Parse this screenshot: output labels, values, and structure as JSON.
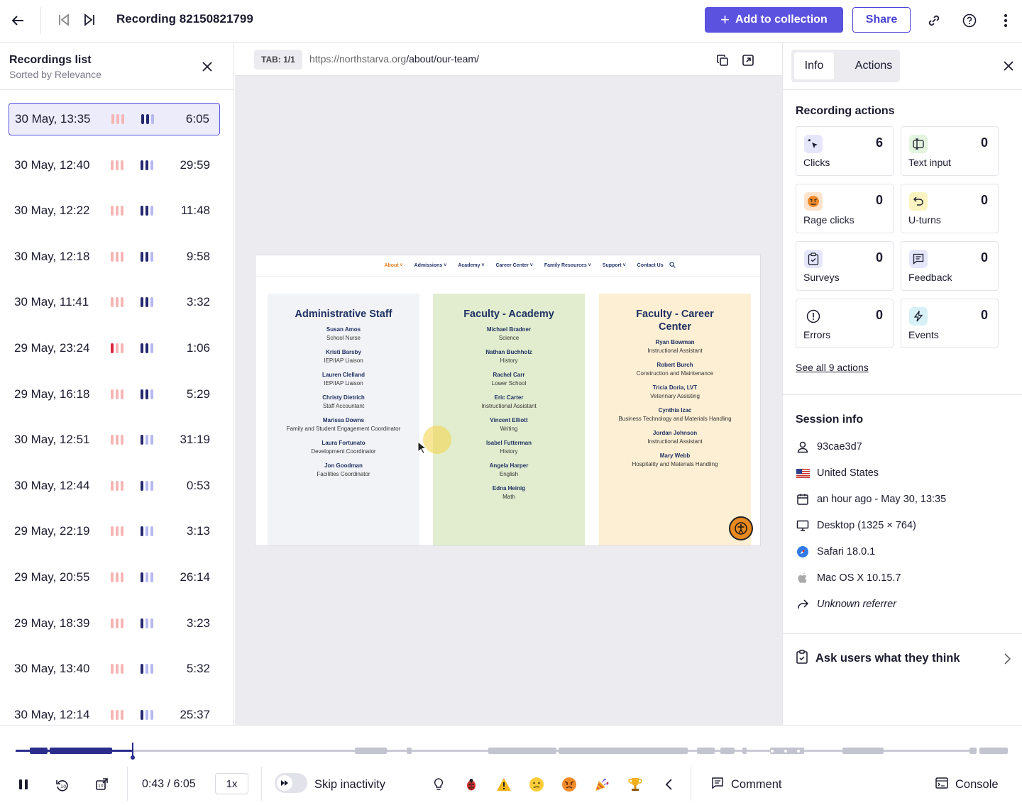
{
  "header": {
    "title": "Recording 82150821799",
    "add_to_collection": "Add to collection",
    "share": "Share"
  },
  "recordings": {
    "title": "Recordings list",
    "subtitle": "Sorted by Relevance",
    "items": [
      {
        "date": "30 May, 13:35",
        "duration": "6:05",
        "active": true
      },
      {
        "date": "30 May, 12:40",
        "duration": "29:59"
      },
      {
        "date": "30 May, 12:22",
        "duration": "11:48"
      },
      {
        "date": "30 May, 12:18",
        "duration": "9:58"
      },
      {
        "date": "30 May, 11:41",
        "duration": "3:32"
      },
      {
        "date": "29 May, 23:24",
        "duration": "1:06"
      },
      {
        "date": "29 May, 16:18",
        "duration": "5:29"
      },
      {
        "date": "30 May, 12:51",
        "duration": "31:19"
      },
      {
        "date": "30 May, 12:44",
        "duration": "0:53"
      },
      {
        "date": "29 May, 22:19",
        "duration": "3:13"
      },
      {
        "date": "29 May, 20:55",
        "duration": "26:14"
      },
      {
        "date": "29 May, 18:39",
        "duration": "3:23"
      },
      {
        "date": "30 May, 13:40",
        "duration": "5:32"
      },
      {
        "date": "30 May, 12:14",
        "duration": "25:37"
      }
    ]
  },
  "player": {
    "tab_badge": "TAB: 1/1",
    "url_host": "https://northstarva.org",
    "url_path": "/about/our-team/"
  },
  "site": {
    "nav": [
      "About",
      "Admissions",
      "Academy",
      "Career Center",
      "Family Resources",
      "Support",
      "Contact Us"
    ],
    "columns": [
      {
        "title": "Administrative Staff",
        "bg": "#f2f3f6",
        "people": [
          {
            "name": "Susan Amos",
            "role": "School Nurse"
          },
          {
            "name": "Kristi Barsby",
            "role": "IEP/IAP Liaison"
          },
          {
            "name": "Lauren Clelland",
            "role": "IEP/IAP Liaison"
          },
          {
            "name": "Christy Dietrich",
            "role": "Staff Accountant"
          },
          {
            "name": "Marissa Downs",
            "role": "Family and Student Engagement Coordinator"
          },
          {
            "name": "Laura Fortunato",
            "role": "Development Coordinator"
          },
          {
            "name": "Jon Goodman",
            "role": "Facilities Coordinator"
          }
        ]
      },
      {
        "title": "Faculty - Academy",
        "bg": "#e2edcf",
        "people": [
          {
            "name": "Michael Bradner",
            "role": "Science"
          },
          {
            "name": "Nathan Buchholz",
            "role": "History"
          },
          {
            "name": "Rachel Carr",
            "role": "Lower School"
          },
          {
            "name": "Eric Carter",
            "role": "Instructional Assistant"
          },
          {
            "name": "Vincent Elliott",
            "role": "Writing"
          },
          {
            "name": "Isabel Futterman",
            "role": "History"
          },
          {
            "name": "Angela Harper",
            "role": "English"
          },
          {
            "name": "Edna Heinig",
            "role": "Math"
          }
        ]
      },
      {
        "title": "Faculty - Career Center",
        "bg": "#fdefd4",
        "people": [
          {
            "name": "Ryan Bowman",
            "role": "Instructional Assistant"
          },
          {
            "name": "Robert Burch",
            "role": "Construction and Maintenance"
          },
          {
            "name": "Tricia Doria, LVT",
            "role": "Veterinary Assisting"
          },
          {
            "name": "Cynthia Izac",
            "role": "Business Technology and Materials Handling"
          },
          {
            "name": "Jordan Johnson",
            "role": "Instructional Assistant"
          },
          {
            "name": "Mary Webb",
            "role": "Hospitality and Materials Handling"
          }
        ]
      }
    ]
  },
  "right_panel": {
    "tabs": [
      "Info",
      "Actions"
    ],
    "recording_actions_title": "Recording actions",
    "actions": [
      {
        "label": "Clicks",
        "count": "6",
        "icon": "click-icon",
        "bg": "#e6e6fb"
      },
      {
        "label": "Text input",
        "count": "0",
        "icon": "text-input-icon",
        "bg": "#e3f4df"
      },
      {
        "label": "Rage clicks",
        "count": "0",
        "icon": "rage-face-icon",
        "bg": "#fde3cc"
      },
      {
        "label": "U-turns",
        "count": "0",
        "icon": "u-turn-icon",
        "bg": "#fbf3c0"
      },
      {
        "label": "Surveys",
        "count": "0",
        "icon": "survey-icon",
        "bg": "#e6e6fb"
      },
      {
        "label": "Feedback",
        "count": "0",
        "icon": "feedback-icon",
        "bg": "#e6e6fb"
      },
      {
        "label": "Errors",
        "count": "0",
        "icon": "error-icon",
        "bg": "#ffffff"
      },
      {
        "label": "Events",
        "count": "0",
        "icon": "lightning-icon",
        "bg": "#d7f1f6"
      }
    ],
    "see_all": "See all 9 actions",
    "session_info_title": "Session info",
    "session": {
      "user": "93cae3d7",
      "country": "United States",
      "time": "an hour ago - May 30, 13:35",
      "device": "Desktop (1325 × 764)",
      "browser": "Safari 18.0.1",
      "os": "Mac OS X 10.15.7",
      "referrer": "Unknown referrer"
    },
    "ask": "Ask users what they think"
  },
  "controls": {
    "time": "0:43 / 6:05",
    "speed": "1x",
    "skip_inactivity": "Skip inactivity",
    "comment": "Comment",
    "console": "Console",
    "progress": 0.118
  }
}
